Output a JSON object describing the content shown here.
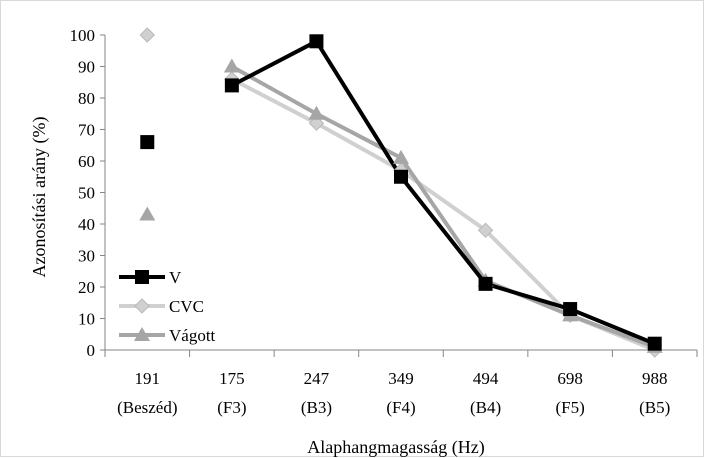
{
  "chart_data": {
    "type": "line",
    "title": "",
    "xlabel": "Alaphangmagasság (Hz)",
    "ylabel": "Azonosítási arány (%)",
    "ylim": [
      0,
      100
    ],
    "yticks": [
      "0",
      "10",
      "20",
      "30",
      "40",
      "50",
      "60",
      "70",
      "80",
      "90",
      "100"
    ],
    "categories": [
      {
        "line1": "191",
        "line2": "(Beszéd)"
      },
      {
        "line1": "175",
        "line2": "(F3)"
      },
      {
        "line1": "247",
        "line2": "(B3)"
      },
      {
        "line1": "349",
        "line2": "(F4)"
      },
      {
        "line1": "494",
        "line2": "(B4)"
      },
      {
        "line1": "698",
        "line2": "(F5)"
      },
      {
        "line1": "988",
        "line2": "(B5)"
      }
    ],
    "note": "",
    "grid": false,
    "legend_position": "lower-left",
    "series": [
      {
        "name": "V",
        "color": "#000000",
        "marker": "square",
        "values": [
          66,
          84,
          98,
          55,
          21,
          13,
          2
        ]
      },
      {
        "name": "CVC",
        "color": "#d0d0d0",
        "marker": "diamond",
        "values": [
          100,
          86,
          72,
          57,
          38,
          11,
          0
        ]
      },
      {
        "name": "Vágott",
        "color": "#a6a6a6",
        "marker": "triangle",
        "values": [
          43,
          90,
          75,
          61,
          22,
          11,
          1
        ]
      }
    ]
  }
}
